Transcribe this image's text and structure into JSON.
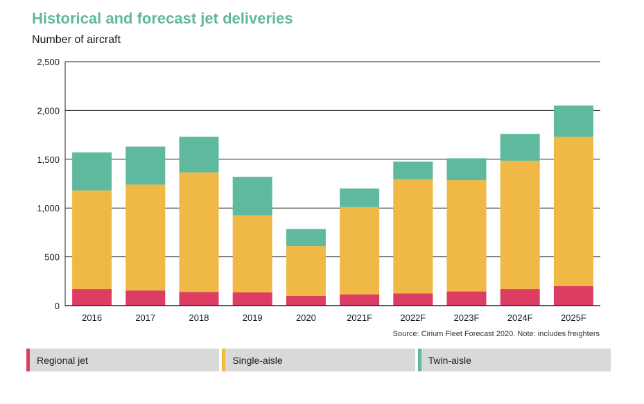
{
  "header": {
    "title": "Historical and forecast jet deliveries",
    "subtitle": "Number of aircraft"
  },
  "source_note": "Source: Cirium Fleet Forecast 2020. Note: includes freighters",
  "colors": {
    "regional": "#dc3d62",
    "single": "#f0b845",
    "twin": "#5fb99e",
    "title": "#5fb99e",
    "grid": "#222222",
    "legend_bg": "#d9d9d9"
  },
  "chart_data": {
    "type": "bar",
    "stacked": true,
    "categories": [
      "2016",
      "2017",
      "2018",
      "2019",
      "2020",
      "2021F",
      "2022F",
      "2023F",
      "2024F",
      "2025F"
    ],
    "series": [
      {
        "name": "Regional jet",
        "values": [
          170,
          155,
          140,
          135,
          100,
          115,
          125,
          145,
          170,
          200
        ]
      },
      {
        "name": "Single-aisle",
        "values": [
          1010,
          1085,
          1225,
          790,
          510,
          895,
          1170,
          1140,
          1315,
          1530
        ]
      },
      {
        "name": "Twin-aisle",
        "values": [
          390,
          390,
          365,
          395,
          175,
          190,
          180,
          225,
          275,
          320
        ]
      }
    ],
    "ylim": [
      0,
      2500
    ],
    "yticks": [
      0,
      500,
      1000,
      1500,
      2000,
      2500
    ],
    "ytick_labels": [
      "0",
      "500",
      "1,000",
      "1,500",
      "2,000",
      "2,500"
    ],
    "grid": true,
    "legend_position": "bottom"
  }
}
